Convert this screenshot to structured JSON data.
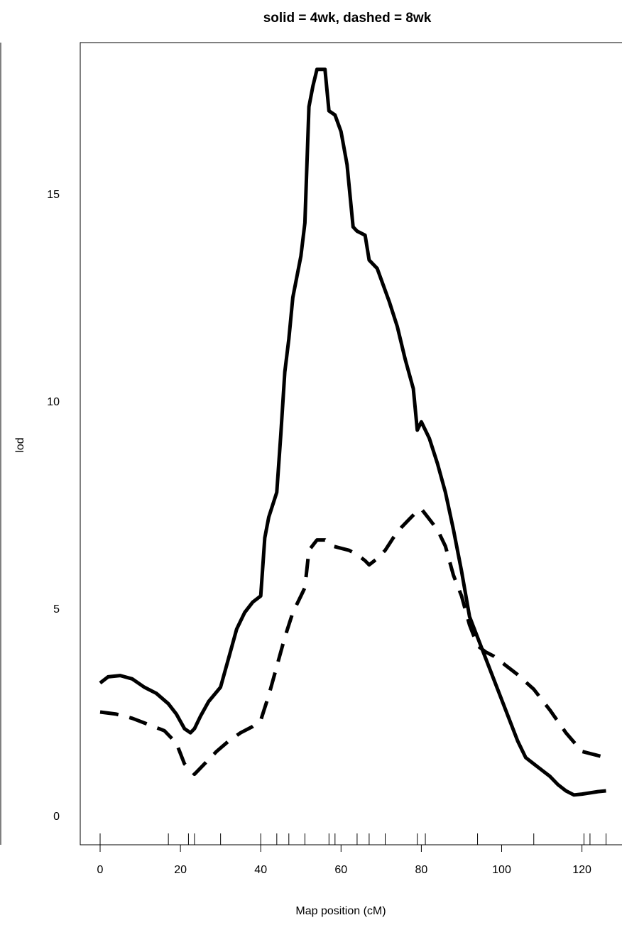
{
  "chart_data": {
    "type": "line",
    "title": "solid = 4wk, dashed = 8wk",
    "xlabel": "Map position (cM)",
    "ylabel": "lod",
    "xlim": [
      -5,
      130
    ],
    "ylim": [
      -0.6,
      18.5
    ],
    "xticks": [
      0,
      20,
      40,
      60,
      80,
      100,
      120
    ],
    "yticks": [
      0,
      5,
      10,
      15
    ],
    "marker_positions": [
      0,
      17,
      22,
      23.5,
      30,
      40,
      44,
      47,
      51,
      57,
      58.5,
      64,
      67,
      71,
      79,
      81,
      94,
      108,
      120.5,
      122,
      126
    ],
    "series": [
      {
        "style": "solid",
        "x": [
          0,
          2,
          5,
          8,
          11,
          14,
          17,
          19,
          21,
          22.5,
          23.5,
          25,
          27,
          30,
          32,
          34,
          36,
          38,
          40,
          41,
          42,
          44,
          45,
          46,
          47,
          48,
          50,
          51,
          52,
          53,
          54,
          56,
          57,
          58.5,
          60,
          61.5,
          63,
          64,
          66,
          67,
          69,
          70.5,
          72,
          74,
          76,
          78,
          79,
          80,
          82,
          84,
          86,
          88,
          90,
          92,
          94,
          96,
          98,
          100,
          102,
          104,
          106,
          108,
          110,
          112,
          114,
          116,
          118,
          120,
          122,
          124,
          126
        ],
        "y": [
          3.2,
          3.35,
          3.38,
          3.3,
          3.1,
          2.95,
          2.7,
          2.45,
          2.1,
          2.0,
          2.1,
          2.4,
          2.75,
          3.1,
          3.8,
          4.5,
          4.9,
          5.15,
          5.3,
          6.7,
          7.2,
          7.8,
          9.2,
          10.7,
          11.5,
          12.5,
          13.5,
          14.3,
          17.1,
          17.6,
          18.0,
          18.0,
          17.0,
          16.9,
          16.5,
          15.7,
          14.2,
          14.1,
          14.0,
          13.4,
          13.2,
          12.8,
          12.4,
          11.8,
          11.0,
          10.3,
          9.3,
          9.5,
          9.1,
          8.5,
          7.8,
          6.9,
          5.9,
          4.8,
          4.3,
          3.8,
          3.3,
          2.8,
          2.3,
          1.8,
          1.4,
          1.25,
          1.1,
          0.95,
          0.75,
          0.6,
          0.5,
          0.52,
          0.55,
          0.58,
          0.6
        ]
      },
      {
        "style": "dashed",
        "x": [
          0,
          4,
          8,
          12,
          16,
          19,
          21,
          22.5,
          23.5,
          26,
          29,
          32,
          35,
          38,
          40,
          42,
          44,
          46,
          48,
          50,
          51,
          52,
          54,
          56,
          58,
          60,
          62,
          64,
          66,
          67,
          69,
          71,
          73,
          75,
          77,
          79,
          80,
          82,
          84,
          86,
          88,
          90,
          92,
          94,
          96,
          98,
          100,
          104,
          108,
          112,
          116,
          120,
          122,
          124,
          126
        ],
        "y": [
          2.5,
          2.45,
          2.35,
          2.2,
          2.05,
          1.75,
          1.25,
          1.1,
          1.0,
          1.25,
          1.55,
          1.8,
          2.0,
          2.15,
          2.3,
          2.9,
          3.6,
          4.3,
          4.9,
          5.3,
          5.5,
          6.4,
          6.65,
          6.65,
          6.5,
          6.45,
          6.4,
          6.3,
          6.15,
          6.05,
          6.2,
          6.4,
          6.7,
          6.95,
          7.15,
          7.35,
          7.4,
          7.15,
          6.9,
          6.5,
          5.8,
          5.3,
          4.6,
          4.1,
          3.95,
          3.85,
          3.7,
          3.4,
          3.05,
          2.55,
          2.0,
          1.55,
          1.5,
          1.45,
          1.4
        ]
      }
    ]
  }
}
